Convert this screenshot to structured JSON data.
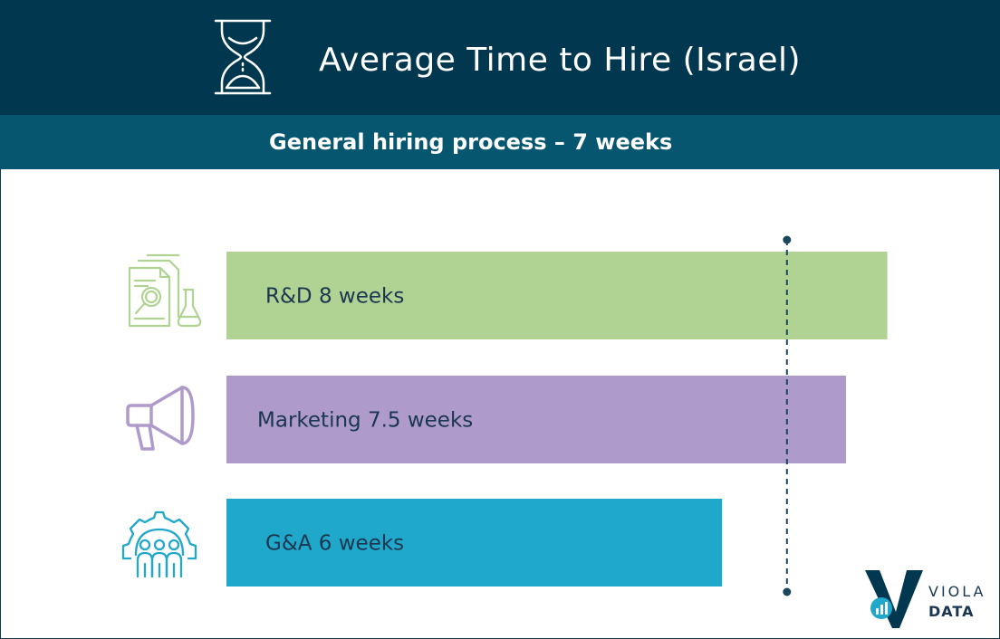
{
  "header": {
    "title": "Average Time to Hire (Israel)",
    "subtitle": "General hiring process – 7 weeks"
  },
  "colors": {
    "header_bg": "#02384f",
    "subheader_bg": "#07566f",
    "rd": "#b0d393",
    "marketing": "#af9bcb",
    "ga": "#20a8cb",
    "reference_line": "#1b4660"
  },
  "chart_data": {
    "type": "bar",
    "orientation": "horizontal",
    "categories": [
      "R&D",
      "Marketing",
      "G&A"
    ],
    "values": [
      8,
      7.5,
      6
    ],
    "unit": "weeks",
    "labels": [
      "R&D 8 weeks",
      "Marketing 7.5 weeks",
      "G&A 6 weeks"
    ],
    "icons": [
      "research-flask-icon",
      "megaphone-icon",
      "team-gear-icon"
    ],
    "reference_line": {
      "value": 7,
      "style": "dashed"
    },
    "xlim": [
      0,
      8
    ],
    "grid": false,
    "legend": "none"
  },
  "logo": {
    "line1": "VIOLA",
    "line2": "DATA"
  }
}
